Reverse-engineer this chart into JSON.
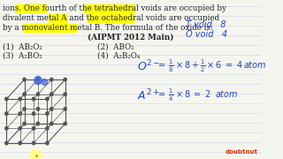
{
  "background_color": "#f5f5f0",
  "line_color": "#c8d4e0",
  "text_color": "#222222",
  "handwriting_color": "#2244cc",
  "highlight_yellow": "#ffff00",
  "highlight_underline": "#ffff00",
  "text_fontsize": 6.3,
  "hand_fontsize": 7.5,
  "line1": "ions. One fourth of the tetrahedral voids are occupied by",
  "line2": "divalent metal A and the octahedral voids are occupied",
  "line3": "by a monovalent metal B. The formula of the oxide is:",
  "source": "(AIPMT 2012 Main)",
  "opt1": "(1)  AB₂O₂",
  "opt2": "(2)  ABO₂",
  "opt3": "(3)  A₂BO₂",
  "opt4": "(4)  A₂B₂O₄",
  "note1": "T void   8",
  "note2": "O void   4",
  "eq1_parts": [
    "O",
    "2-",
    " = ",
    "1",
    "8",
    " × 8 + ",
    "1",
    "2",
    " × 6  =  4 atom"
  ],
  "eq2_parts": [
    "A",
    "2+",
    " = ",
    "1",
    "4",
    " × 8  =  2  atom"
  ],
  "cube_color": "#555555",
  "atom_color": "#555555",
  "blue_atom_color": "#4466dd",
  "yellow_circle_color": "#ffff88",
  "doubtnut_color": "#dd3300"
}
